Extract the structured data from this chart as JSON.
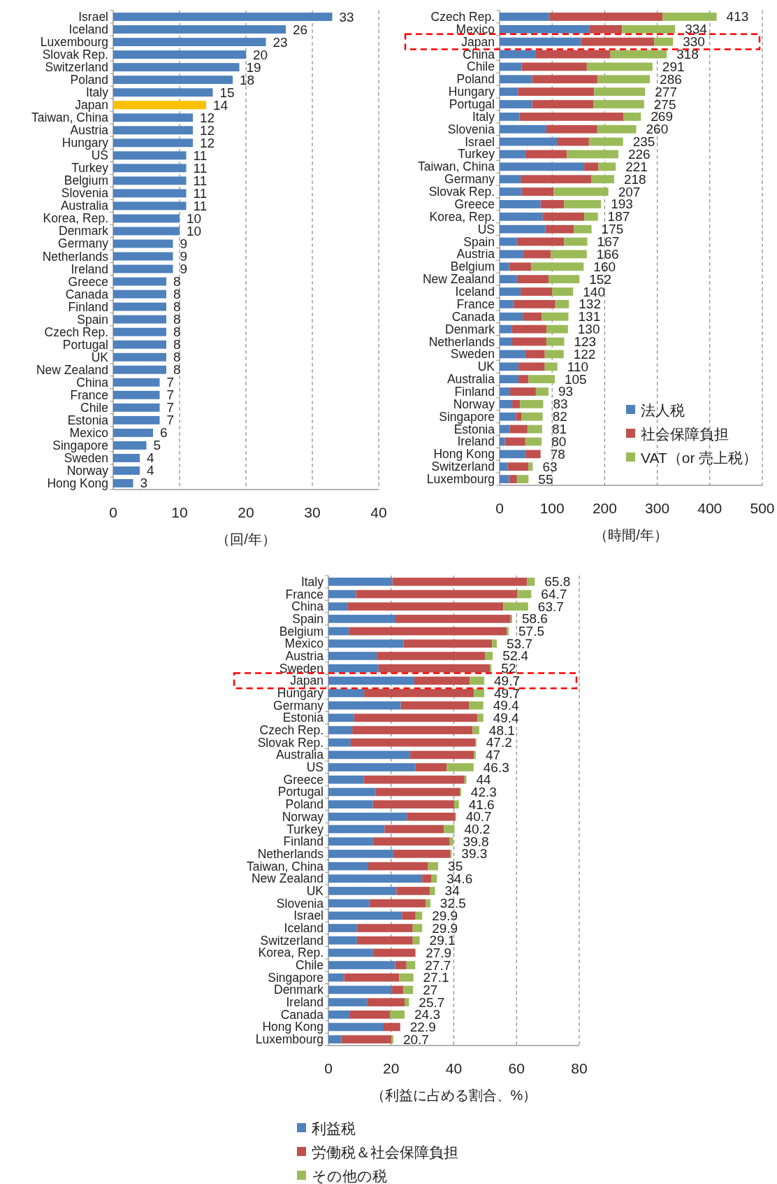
{
  "chart_data": [
    {
      "type": "bar",
      "orientation": "horizontal",
      "xlabel": "（回/年）",
      "xlim": [
        0,
        40
      ],
      "xticks": [
        0,
        10,
        20,
        30,
        40
      ],
      "grid": "x",
      "data_labels": true,
      "categories": [
        "Israel",
        "Iceland",
        "Luxembourg",
        "Slovak Rep.",
        "Switzerland",
        "Poland",
        "Italy",
        "Japan",
        "Taiwan, China",
        "Austria",
        "Hungary",
        "US",
        "Turkey",
        "Belgium",
        "Slovenia",
        "Australia",
        "Korea, Rep.",
        "Denmark",
        "Germany",
        "Netherlands",
        "Ireland",
        "Greece",
        "Canada",
        "Finland",
        "Spain",
        "Czech Rep.",
        "Portugal",
        "UK",
        "New Zealand",
        "China",
        "France",
        "Chile",
        "Estonia",
        "Mexico",
        "Singapore",
        "Sweden",
        "Norway",
        "Hong Kong"
      ],
      "values": [
        33,
        26,
        23,
        20,
        19,
        18,
        15,
        14,
        12,
        12,
        12,
        11,
        11,
        11,
        11,
        11,
        10,
        10,
        9,
        9,
        9,
        8,
        8,
        8,
        8,
        8,
        8,
        8,
        8,
        7,
        7,
        7,
        7,
        6,
        5,
        4,
        4,
        3
      ],
      "colors": [
        "#4f81bd",
        "#4f81bd",
        "#4f81bd",
        "#4f81bd",
        "#4f81bd",
        "#4f81bd",
        "#4f81bd",
        "#ffc000",
        "#4f81bd",
        "#4f81bd",
        "#4f81bd",
        "#4f81bd",
        "#4f81bd",
        "#4f81bd",
        "#4f81bd",
        "#4f81bd",
        "#4f81bd",
        "#4f81bd",
        "#4f81bd",
        "#4f81bd",
        "#4f81bd",
        "#4f81bd",
        "#4f81bd",
        "#4f81bd",
        "#4f81bd",
        "#4f81bd",
        "#4f81bd",
        "#4f81bd",
        "#4f81bd",
        "#4f81bd",
        "#4f81bd",
        "#4f81bd",
        "#4f81bd",
        "#4f81bd",
        "#4f81bd",
        "#4f81bd",
        "#4f81bd",
        "#4f81bd"
      ]
    },
    {
      "type": "bar",
      "orientation": "horizontal",
      "stacked": true,
      "xlabel": "（時間/年）",
      "xlim": [
        0,
        500
      ],
      "xticks": [
        0,
        100,
        200,
        300,
        400,
        500
      ],
      "grid": "x",
      "legend": "bottom right",
      "categories": [
        "Czech Rep.",
        "Mexico",
        "Japan",
        "China",
        "Chile",
        "Poland",
        "Hungary",
        "Portugal",
        "Italy",
        "Slovenia",
        "Israel",
        "Turkey",
        "Taiwan, China",
        "Germany",
        "Slovak Rep.",
        "Greece",
        "Korea, Rep.",
        "US",
        "Spain",
        "Austria",
        "Belgium",
        "New Zealand",
        "Iceland",
        "France",
        "Canada",
        "Denmark",
        "Netherlands",
        "Sweden",
        "UK",
        "Australia",
        "Finland",
        "Norway",
        "Singapore",
        "Estonia",
        "Ireland",
        "Hong Kong",
        "Switzerland",
        "Luxembourg"
      ],
      "series": [
        {
          "name": "法人税",
          "color": "#4f81bd",
          "values": [
            94,
            170,
            155,
            69,
            42,
            62,
            35,
            62,
            38,
            89,
            109,
            49,
            161,
            40,
            42,
            78,
            82,
            87,
            33,
            45,
            18,
            33,
            40,
            26,
            44,
            23,
            24,
            49,
            36,
            36,
            20,
            24,
            31,
            19,
            10,
            49,
            15,
            18
          ]
        },
        {
          "name": "社会保障負担",
          "color": "#c0504d",
          "values": [
            216,
            63,
            139,
            142,
            124,
            124,
            145,
            117,
            198,
            97,
            61,
            79,
            27,
            135,
            61,
            45,
            79,
            54,
            90,
            52,
            42,
            60,
            60,
            80,
            36,
            66,
            65,
            37,
            50,
            19,
            49,
            15,
            11,
            34,
            39,
            29,
            40,
            15
          ]
        },
        {
          "name": "VAT（or 売上税）",
          "color": "#9bbb59",
          "values": [
            103,
            101,
            36,
            107,
            125,
            100,
            97,
            96,
            33,
            74,
            65,
            98,
            33,
            43,
            104,
            70,
            26,
            34,
            44,
            69,
            100,
            59,
            40,
            26,
            51,
            41,
            34,
            36,
            24,
            50,
            24,
            44,
            40,
            28,
            31,
            0,
            8,
            22
          ]
        }
      ],
      "totals": [
        "413",
        "334",
        "330",
        "318",
        "291",
        "286",
        "277",
        "275",
        "269",
        "260",
        "235",
        "226",
        "221",
        "218",
        "207",
        "193",
        "187",
        "175",
        "167",
        "166",
        "160",
        "152",
        "140",
        "132",
        "131",
        "130",
        "123",
        "122",
        "110",
        "105",
        "93",
        "83",
        "82",
        "81",
        "80",
        "78",
        "63",
        "55"
      ]
    },
    {
      "type": "bar",
      "orientation": "horizontal",
      "stacked": true,
      "xlabel": "（利益に占める割合、%）",
      "xlim": [
        0,
        80
      ],
      "xticks": [
        0,
        20,
        40,
        60,
        80
      ],
      "grid": "x",
      "legend": "bottom",
      "categories": [
        "Italy",
        "France",
        "China",
        "Spain",
        "Belgium",
        "Mexico",
        "Austria",
        "Sweden",
        "Japan",
        "Hungary",
        "Germany",
        "Estonia",
        "Czech Rep.",
        "Slovak Rep.",
        "Australia",
        "US",
        "Greece",
        "Portugal",
        "Poland",
        "Norway",
        "Turkey",
        "Finland",
        "Netherlands",
        "Taiwan, China",
        "New Zealand",
        "UK",
        "Slovenia",
        "Israel",
        "Iceland",
        "Switzerland",
        "Korea, Rep.",
        "Chile",
        "Singapore",
        "Denmark",
        "Ireland",
        "Canada",
        "Hong Kong",
        "Luxembourg"
      ],
      "series": [
        {
          "name": "利益税",
          "color": "#4f81bd",
          "values": [
            20.4,
            8.8,
            6.2,
            21.4,
            6.5,
            24.0,
            15.4,
            16.0,
            27.4,
            11.4,
            23.1,
            8.2,
            7.6,
            7.1,
            26.1,
            27.8,
            11.2,
            15.1,
            14.2,
            25.0,
            17.9,
            14.2,
            20.7,
            12.7,
            29.9,
            21.7,
            13.1,
            23.5,
            9.1,
            9.1,
            14.2,
            21.3,
            5.0,
            20.3,
            12.3,
            6.7,
            17.6,
            4.1
          ]
        },
        {
          "name": "労働税＆社会保障負担",
          "color": "#c0504d",
          "values": [
            43.0,
            51.5,
            49.6,
            36.7,
            50.4,
            28.2,
            34.5,
            35.5,
            17.7,
            35.0,
            21.7,
            39.3,
            38.4,
            39.7,
            20.3,
            9.9,
            32.2,
            26.8,
            25.9,
            15.5,
            18.9,
            24.5,
            18.2,
            19.1,
            3.0,
            10.6,
            17.9,
            4.3,
            17.8,
            17.8,
            13.5,
            3.6,
            17.6,
            3.6,
            12.0,
            12.9,
            5.3,
            16.0
          ]
        },
        {
          "name": "その他の税",
          "color": "#9bbb59",
          "values": [
            2.4,
            4.4,
            7.9,
            0.5,
            0.6,
            1.5,
            2.5,
            0.5,
            4.6,
            3.3,
            4.6,
            1.9,
            2.1,
            0.4,
            0.6,
            8.6,
            0.6,
            0.4,
            1.5,
            0.2,
            3.4,
            1.1,
            0.4,
            3.2,
            1.7,
            1.7,
            1.5,
            2.1,
            3.0,
            2.2,
            0.2,
            2.8,
            4.5,
            3.1,
            1.4,
            4.7,
            0.0,
            0.6
          ]
        }
      ],
      "totals": [
        "65.8",
        "64.7",
        "63.7",
        "58.6",
        "57.5",
        "53.7",
        "52.4",
        "52",
        "49.7",
        "49.7",
        "49.4",
        "49.4",
        "48.1",
        "47.2",
        "47",
        "46.3",
        "44",
        "42.3",
        "41.6",
        "40.7",
        "40.2",
        "39.8",
        "39.3",
        "35",
        "34.6",
        "34",
        "32.5",
        "29.9",
        "29.9",
        "29.1",
        "27.9",
        "27.7",
        "27.1",
        "27",
        "25.7",
        "24.3",
        "22.9",
        "20.7"
      ]
    }
  ]
}
